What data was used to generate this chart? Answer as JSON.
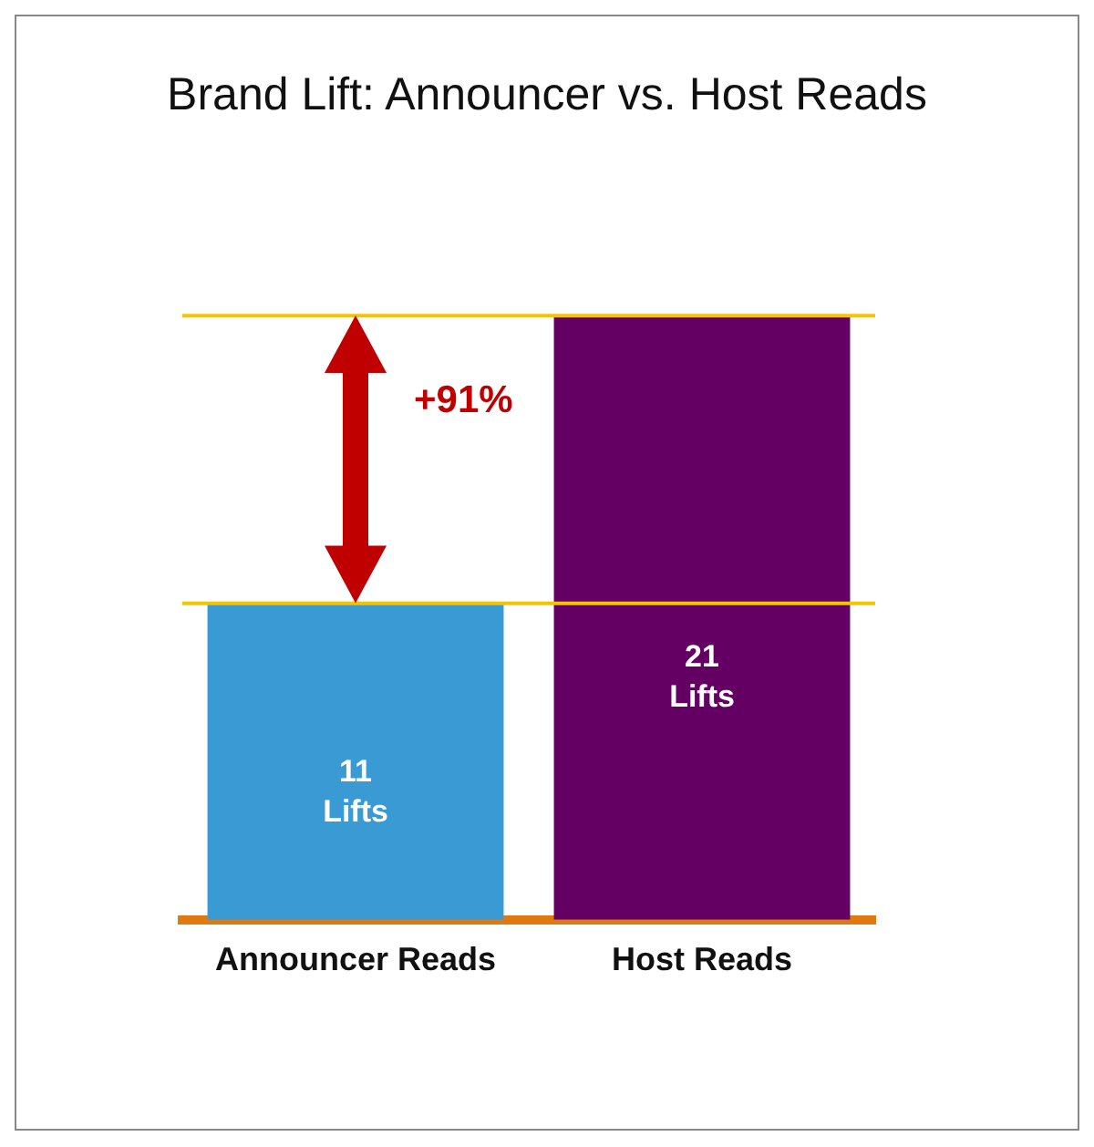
{
  "chart_data": {
    "type": "bar",
    "title": "Brand Lift: Announcer vs. Host Reads",
    "categories": [
      "Announcer Reads",
      "Host Reads"
    ],
    "series": [
      {
        "colors": [
          "#3a9ad4",
          "#640064"
        ],
        "values": [
          11,
          21
        ],
        "value_labels": [
          "11 Lifts",
          "21 Lifts"
        ]
      }
    ],
    "ref_lines": [
      {
        "axis": "y",
        "value": 21,
        "color": "#f5c400"
      },
      {
        "axis": "y",
        "value": 11,
        "color": "#f5c400"
      }
    ],
    "annotations": [
      "+91%"
    ],
    "tick_labels": "x",
    "grid": false,
    "legend": false
  }
}
